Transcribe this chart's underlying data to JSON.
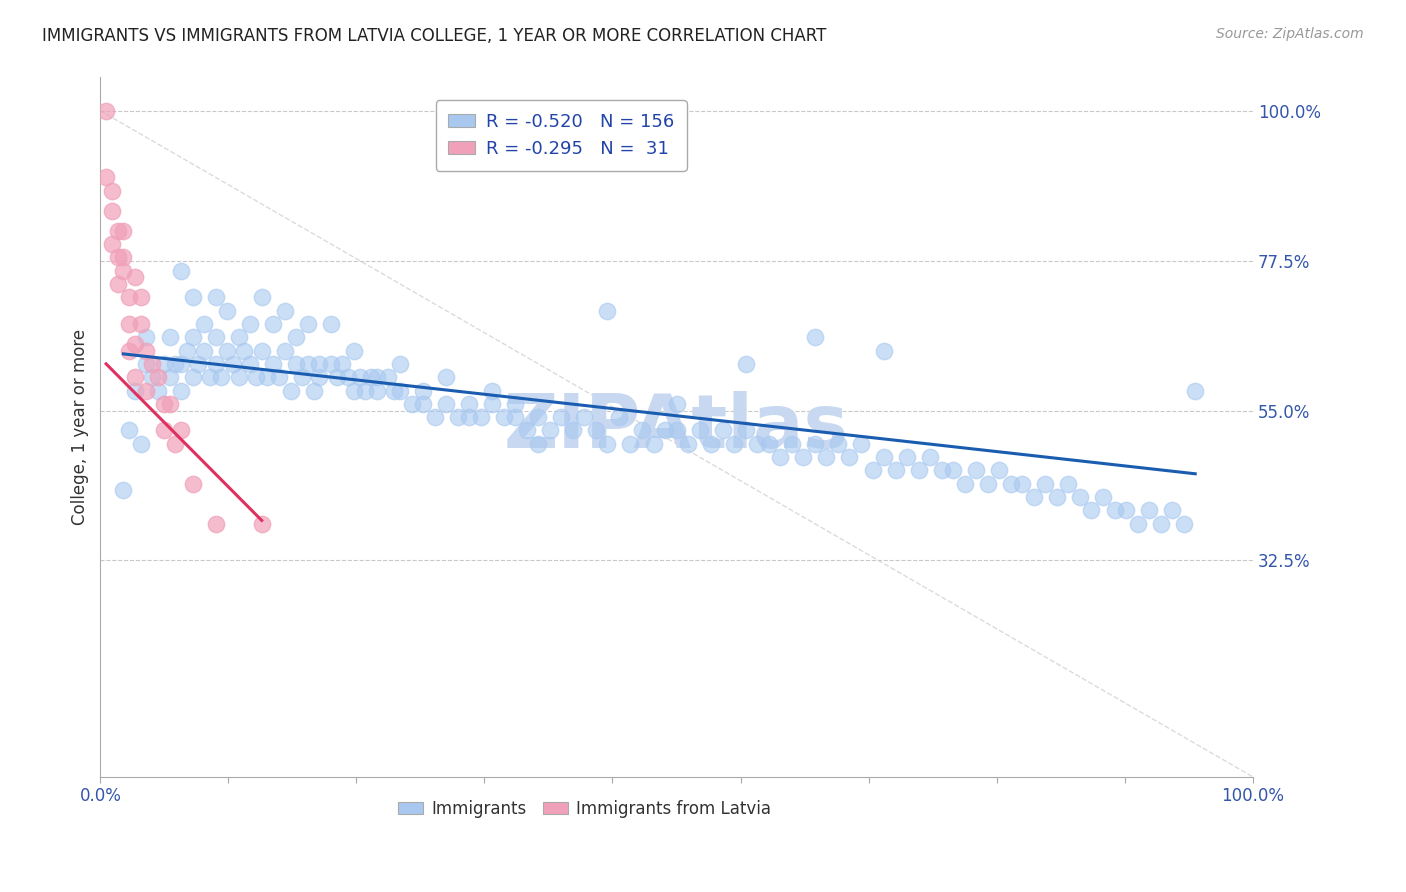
{
  "title": "IMMIGRANTS VS IMMIGRANTS FROM LATVIA COLLEGE, 1 YEAR OR MORE CORRELATION CHART",
  "source_text": "Source: ZipAtlas.com",
  "ylabel": "College, 1 year or more",
  "xlim": [
    0.0,
    1.0
  ],
  "ylim": [
    0.0,
    1.05
  ],
  "x_tick_labels": [
    "0.0%",
    "",
    "",
    "",
    "",
    "",
    "",
    "",
    "",
    "100.0%"
  ],
  "x_tick_positions": [
    0.0,
    0.111,
    0.222,
    0.333,
    0.444,
    0.556,
    0.667,
    0.778,
    0.889,
    1.0
  ],
  "y_tick_labels": [
    "100.0%",
    "77.5%",
    "55.0%",
    "32.5%"
  ],
  "y_tick_positions": [
    1.0,
    0.775,
    0.55,
    0.325
  ],
  "blue_color": "#a8c8f0",
  "blue_line_color": "#1a5cb0",
  "pink_color": "#f0a0b8",
  "pink_line_color": "#e03060",
  "diagonal_color": "#cccccc",
  "background_color": "#ffffff",
  "grid_color": "#bbbbbb",
  "watermark_text": "ZIPAtlas",
  "watermark_color": "#c8d8f0",
  "legend_R1": "R = -0.520",
  "legend_N1": "N = 156",
  "legend_R2": "R = -0.295",
  "legend_N2": "N =  31",
  "blue_line_x": [
    0.02,
    0.95
  ],
  "blue_line_y": [
    0.635,
    0.455
  ],
  "pink_line_x": [
    0.005,
    0.14
  ],
  "pink_line_y": [
    0.62,
    0.385
  ],
  "blue_scatter_x": [
    0.02,
    0.025,
    0.03,
    0.035,
    0.04,
    0.04,
    0.045,
    0.05,
    0.055,
    0.06,
    0.06,
    0.065,
    0.07,
    0.07,
    0.075,
    0.08,
    0.08,
    0.085,
    0.09,
    0.095,
    0.1,
    0.1,
    0.105,
    0.11,
    0.115,
    0.12,
    0.125,
    0.13,
    0.135,
    0.14,
    0.145,
    0.15,
    0.155,
    0.16,
    0.165,
    0.17,
    0.175,
    0.18,
    0.185,
    0.19,
    0.2,
    0.205,
    0.21,
    0.215,
    0.22,
    0.225,
    0.23,
    0.235,
    0.24,
    0.25,
    0.255,
    0.26,
    0.27,
    0.28,
    0.29,
    0.3,
    0.31,
    0.32,
    0.33,
    0.34,
    0.35,
    0.36,
    0.37,
    0.38,
    0.39,
    0.4,
    0.41,
    0.42,
    0.43,
    0.44,
    0.45,
    0.46,
    0.47,
    0.48,
    0.49,
    0.5,
    0.51,
    0.52,
    0.53,
    0.54,
    0.55,
    0.56,
    0.57,
    0.58,
    0.59,
    0.6,
    0.61,
    0.62,
    0.63,
    0.64,
    0.65,
    0.66,
    0.67,
    0.68,
    0.69,
    0.7,
    0.71,
    0.72,
    0.73,
    0.74,
    0.75,
    0.76,
    0.77,
    0.78,
    0.79,
    0.8,
    0.81,
    0.82,
    0.83,
    0.84,
    0.85,
    0.86,
    0.87,
    0.88,
    0.89,
    0.9,
    0.91,
    0.92,
    0.93,
    0.94,
    0.38,
    0.44,
    0.5,
    0.56,
    0.62,
    0.68,
    0.07,
    0.08,
    0.09,
    0.1,
    0.11,
    0.12,
    0.13,
    0.14,
    0.15,
    0.16,
    0.17,
    0.18,
    0.19,
    0.2,
    0.22,
    0.24,
    0.26,
    0.28,
    0.3,
    0.32,
    0.34,
    0.36,
    0.95
  ],
  "blue_scatter_y": [
    0.43,
    0.52,
    0.58,
    0.5,
    0.62,
    0.66,
    0.6,
    0.58,
    0.62,
    0.6,
    0.66,
    0.62,
    0.58,
    0.62,
    0.64,
    0.6,
    0.66,
    0.62,
    0.64,
    0.6,
    0.62,
    0.66,
    0.6,
    0.64,
    0.62,
    0.6,
    0.64,
    0.62,
    0.6,
    0.64,
    0.6,
    0.62,
    0.6,
    0.64,
    0.58,
    0.62,
    0.6,
    0.62,
    0.58,
    0.6,
    0.62,
    0.6,
    0.62,
    0.6,
    0.58,
    0.6,
    0.58,
    0.6,
    0.58,
    0.6,
    0.58,
    0.58,
    0.56,
    0.58,
    0.54,
    0.56,
    0.54,
    0.56,
    0.54,
    0.56,
    0.54,
    0.56,
    0.52,
    0.54,
    0.52,
    0.54,
    0.52,
    0.54,
    0.52,
    0.5,
    0.54,
    0.5,
    0.52,
    0.5,
    0.52,
    0.52,
    0.5,
    0.52,
    0.5,
    0.52,
    0.5,
    0.52,
    0.5,
    0.5,
    0.48,
    0.5,
    0.48,
    0.5,
    0.48,
    0.5,
    0.48,
    0.5,
    0.46,
    0.48,
    0.46,
    0.48,
    0.46,
    0.48,
    0.46,
    0.46,
    0.44,
    0.46,
    0.44,
    0.46,
    0.44,
    0.44,
    0.42,
    0.44,
    0.42,
    0.44,
    0.42,
    0.4,
    0.42,
    0.4,
    0.4,
    0.38,
    0.4,
    0.38,
    0.4,
    0.38,
    0.5,
    0.7,
    0.56,
    0.62,
    0.66,
    0.64,
    0.76,
    0.72,
    0.68,
    0.72,
    0.7,
    0.66,
    0.68,
    0.72,
    0.68,
    0.7,
    0.66,
    0.68,
    0.62,
    0.68,
    0.64,
    0.6,
    0.62,
    0.56,
    0.6,
    0.54,
    0.58,
    0.54,
    0.58
  ],
  "pink_scatter_x": [
    0.005,
    0.01,
    0.01,
    0.015,
    0.015,
    0.02,
    0.02,
    0.025,
    0.025,
    0.03,
    0.03,
    0.035,
    0.035,
    0.04,
    0.04,
    0.045,
    0.05,
    0.055,
    0.055,
    0.06,
    0.065,
    0.07,
    0.08,
    0.1,
    0.14,
    0.005,
    0.01,
    0.015,
    0.02,
    0.025,
    0.03
  ],
  "pink_scatter_y": [
    1.0,
    0.85,
    0.8,
    0.78,
    0.74,
    0.82,
    0.76,
    0.72,
    0.68,
    0.75,
    0.65,
    0.72,
    0.68,
    0.64,
    0.58,
    0.62,
    0.6,
    0.56,
    0.52,
    0.56,
    0.5,
    0.52,
    0.44,
    0.38,
    0.38,
    0.9,
    0.88,
    0.82,
    0.78,
    0.64,
    0.6
  ]
}
